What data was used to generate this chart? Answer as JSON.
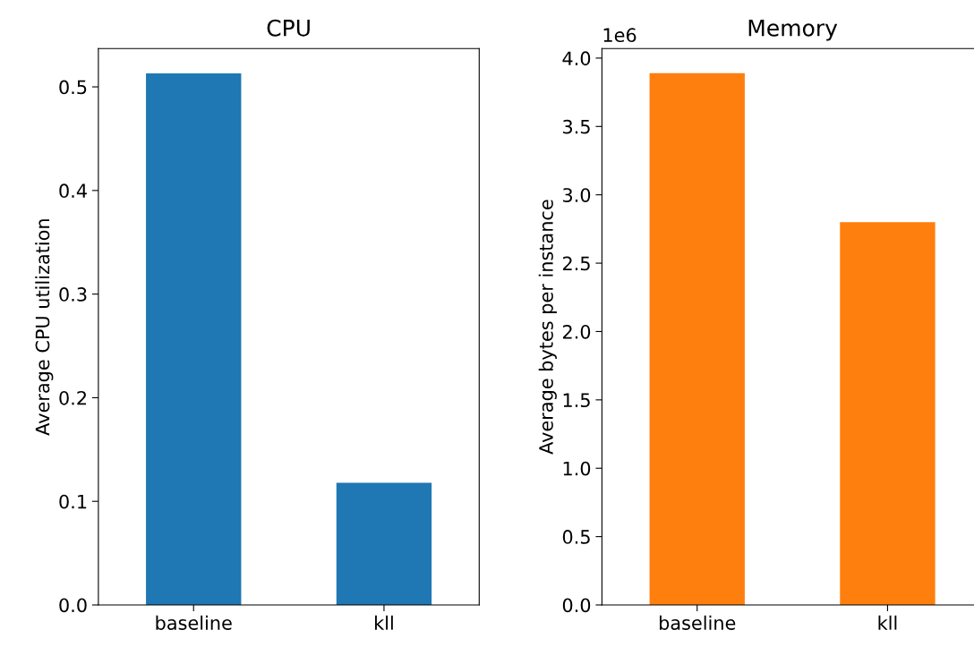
{
  "chart_data": [
    {
      "type": "bar",
      "title": "CPU",
      "ylabel": "Average CPU utilization",
      "categories": [
        "baseline",
        "kll"
      ],
      "values": [
        0.513,
        0.118
      ],
      "color": "#1f77b4",
      "ylim": [
        0,
        0.537
      ],
      "yticks": [
        {
          "value": 0,
          "label": "0.0"
        },
        0.1,
        0.2,
        0.3,
        0.4,
        0.5
      ],
      "grid": false
    },
    {
      "type": "bar",
      "title": "Memory",
      "ylabel": "Average bytes per instance",
      "categories": [
        "baseline",
        "kll"
      ],
      "values": [
        3.89,
        2.8
      ],
      "color": "#ff7f0e",
      "ylim": [
        0,
        4.07
      ],
      "yticks": [
        {
          "value": 0,
          "label": "0.0"
        },
        0.5,
        {
          "value": 1,
          "label": "1.0"
        },
        1.5,
        {
          "value": 2,
          "label": "2.0"
        },
        2.5,
        {
          "value": 3,
          "label": "3.0"
        },
        3.5,
        {
          "value": 4,
          "label": "4.0"
        }
      ],
      "annotations": [
        "1e6"
      ],
      "grid": false
    }
  ]
}
